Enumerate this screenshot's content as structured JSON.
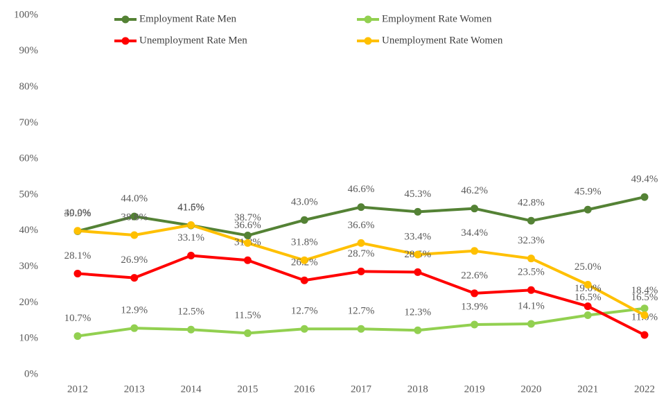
{
  "chart_data": {
    "type": "line",
    "categories": [
      "2012",
      "2013",
      "2014",
      "2015",
      "2016",
      "2017",
      "2018",
      "2019",
      "2020",
      "2021",
      "2022"
    ],
    "series": [
      {
        "name": "Employment Rate Men",
        "color": "#548235",
        "values": [
          39.9,
          44.0,
          41.5,
          38.7,
          43.0,
          46.6,
          45.3,
          46.2,
          42.8,
          45.9,
          49.4
        ],
        "value_labels": [
          "39.9%",
          "44.0%",
          "41.5%",
          "38.7%",
          "43.0%",
          "46.6%",
          "45.3%",
          "46.2%",
          "42.8%",
          "45.9%",
          "49.4%"
        ]
      },
      {
        "name": "Employment Rate Women",
        "color": "#92d050",
        "values": [
          10.7,
          12.9,
          12.5,
          11.5,
          12.7,
          12.7,
          12.3,
          13.9,
          14.1,
          16.5,
          18.4
        ],
        "value_labels": [
          "10.7%",
          "12.9%",
          "12.5%",
          "11.5%",
          "12.7%",
          "12.7%",
          "12.3%",
          "13.9%",
          "14.1%",
          "16.5%",
          "18.4%"
        ]
      },
      {
        "name": "Unemployment Rate Men",
        "color": "#ff0000",
        "values": [
          28.1,
          26.9,
          33.1,
          31.8,
          26.2,
          28.7,
          28.5,
          22.6,
          23.5,
          19.0,
          11.0
        ],
        "value_labels": [
          "28.1%",
          "26.9%",
          "33.1%",
          "31.8%",
          "26.2%",
          "28.7%",
          "28.5%",
          "22.6%",
          "23.5%",
          "19.0%",
          "11.0%"
        ]
      },
      {
        "name": "Unemployment Rate Women",
        "color": "#ffc000",
        "values": [
          40.0,
          38.8,
          41.6,
          36.6,
          31.8,
          36.6,
          33.4,
          34.4,
          32.3,
          25.0,
          16.5
        ],
        "value_labels": [
          "40.0%",
          "38.8%",
          "41.6%",
          "36.6%",
          "31.8%",
          "36.6%",
          "33.4%",
          "34.4%",
          "32.3%",
          "25.0%",
          "16.5%"
        ]
      }
    ],
    "ylim": [
      0,
      100
    ],
    "yticks": [
      {
        "value": 0,
        "label": "0%"
      },
      {
        "value": 10,
        "label": "10%"
      },
      {
        "value": 20,
        "label": "20%"
      },
      {
        "value": 30,
        "label": "30%"
      },
      {
        "value": 40,
        "label": "40%"
      },
      {
        "value": 50,
        "label": "50%"
      },
      {
        "value": 60,
        "label": "60%"
      },
      {
        "value": 70,
        "label": "70%"
      },
      {
        "value": 80,
        "label": "80%"
      },
      {
        "value": 90,
        "label": "90%"
      },
      {
        "value": 100,
        "label": "100%"
      }
    ],
    "grid": false,
    "legend": "top"
  }
}
